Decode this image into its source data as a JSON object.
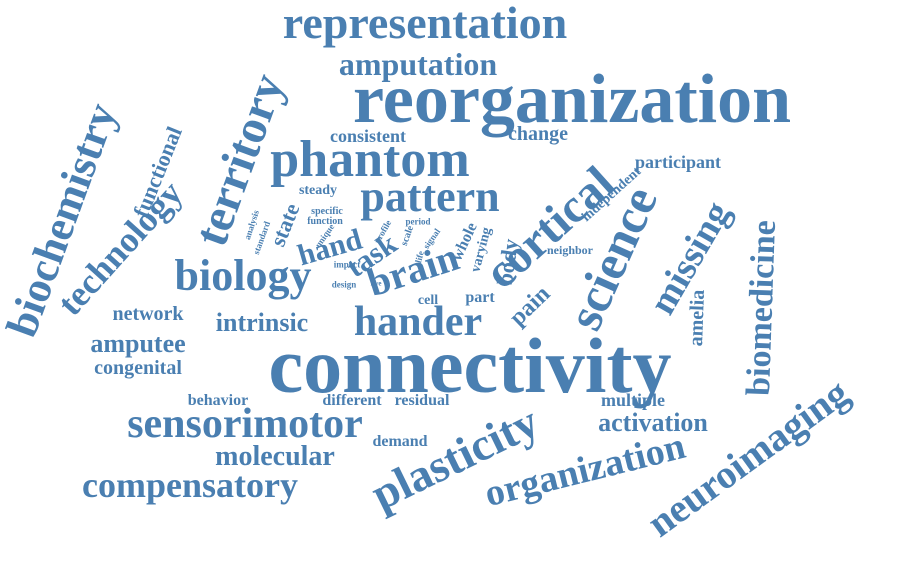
{
  "color": "#4a7fb1",
  "words": [
    {
      "id": "reorganization",
      "text": "reorganization"
    },
    {
      "id": "connectivity",
      "text": "connectivity"
    },
    {
      "id": "representation",
      "text": "representation"
    },
    {
      "id": "amputation",
      "text": "amputation"
    },
    {
      "id": "phantom",
      "text": "phantom"
    },
    {
      "id": "pattern",
      "text": "pattern"
    },
    {
      "id": "territory",
      "text": "territory"
    },
    {
      "id": "biochemistry",
      "text": "biochemistry"
    },
    {
      "id": "technology",
      "text": "technology"
    },
    {
      "id": "functional",
      "text": "functional"
    },
    {
      "id": "biology",
      "text": "biology"
    },
    {
      "id": "cortical",
      "text": "cortical"
    },
    {
      "id": "science",
      "text": "science"
    },
    {
      "id": "missing",
      "text": "missing"
    },
    {
      "id": "biomedicine",
      "text": "biomedicine"
    },
    {
      "id": "hander",
      "text": "hander"
    },
    {
      "id": "brain",
      "text": "brain"
    },
    {
      "id": "task",
      "text": "task"
    },
    {
      "id": "hand",
      "text": "hand"
    },
    {
      "id": "intrinsic",
      "text": "intrinsic"
    },
    {
      "id": "network",
      "text": "network"
    },
    {
      "id": "amputee",
      "text": "amputee"
    },
    {
      "id": "congenital",
      "text": "congenital"
    },
    {
      "id": "sensorimotor",
      "text": "sensorimotor"
    },
    {
      "id": "plasticity",
      "text": "plasticity"
    },
    {
      "id": "molecular",
      "text": "molecular"
    },
    {
      "id": "compensatory",
      "text": "compensatory"
    },
    {
      "id": "organization",
      "text": "organization"
    },
    {
      "id": "neuroimaging",
      "text": "neuroimaging"
    },
    {
      "id": "activation",
      "text": "activation"
    },
    {
      "id": "multiple",
      "text": "multiple"
    },
    {
      "id": "amelia",
      "text": "amelia"
    },
    {
      "id": "pain",
      "text": "pain"
    },
    {
      "id": "body",
      "text": "body"
    },
    {
      "id": "part",
      "text": "part"
    },
    {
      "id": "whole",
      "text": "whole"
    },
    {
      "id": "participant",
      "text": "participant"
    },
    {
      "id": "independent",
      "text": "independent"
    },
    {
      "id": "consistent",
      "text": "consistent"
    },
    {
      "id": "change",
      "text": "change"
    },
    {
      "id": "steady",
      "text": "steady"
    },
    {
      "id": "state",
      "text": "state"
    },
    {
      "id": "specific",
      "text": "specific"
    },
    {
      "id": "function",
      "text": "function"
    },
    {
      "id": "unique",
      "text": "unique"
    },
    {
      "id": "standard",
      "text": "standard"
    },
    {
      "id": "analysis",
      "text": "analysis"
    },
    {
      "id": "profile",
      "text": "profile"
    },
    {
      "id": "period",
      "text": "period"
    },
    {
      "id": "scale",
      "text": "scale"
    },
    {
      "id": "life",
      "text": "life"
    },
    {
      "id": "signal",
      "text": "signal"
    },
    {
      "id": "varying",
      "text": "varying"
    },
    {
      "id": "neighbor",
      "text": "neighbor"
    },
    {
      "id": "impact",
      "text": "impact"
    },
    {
      "id": "design",
      "text": "design"
    },
    {
      "id": "five",
      "text": "five"
    },
    {
      "id": "cell",
      "text": "cell"
    },
    {
      "id": "behavior",
      "text": "behavior"
    },
    {
      "id": "different",
      "text": "different"
    },
    {
      "id": "residual",
      "text": "residual"
    },
    {
      "id": "demand",
      "text": "demand"
    }
  ]
}
